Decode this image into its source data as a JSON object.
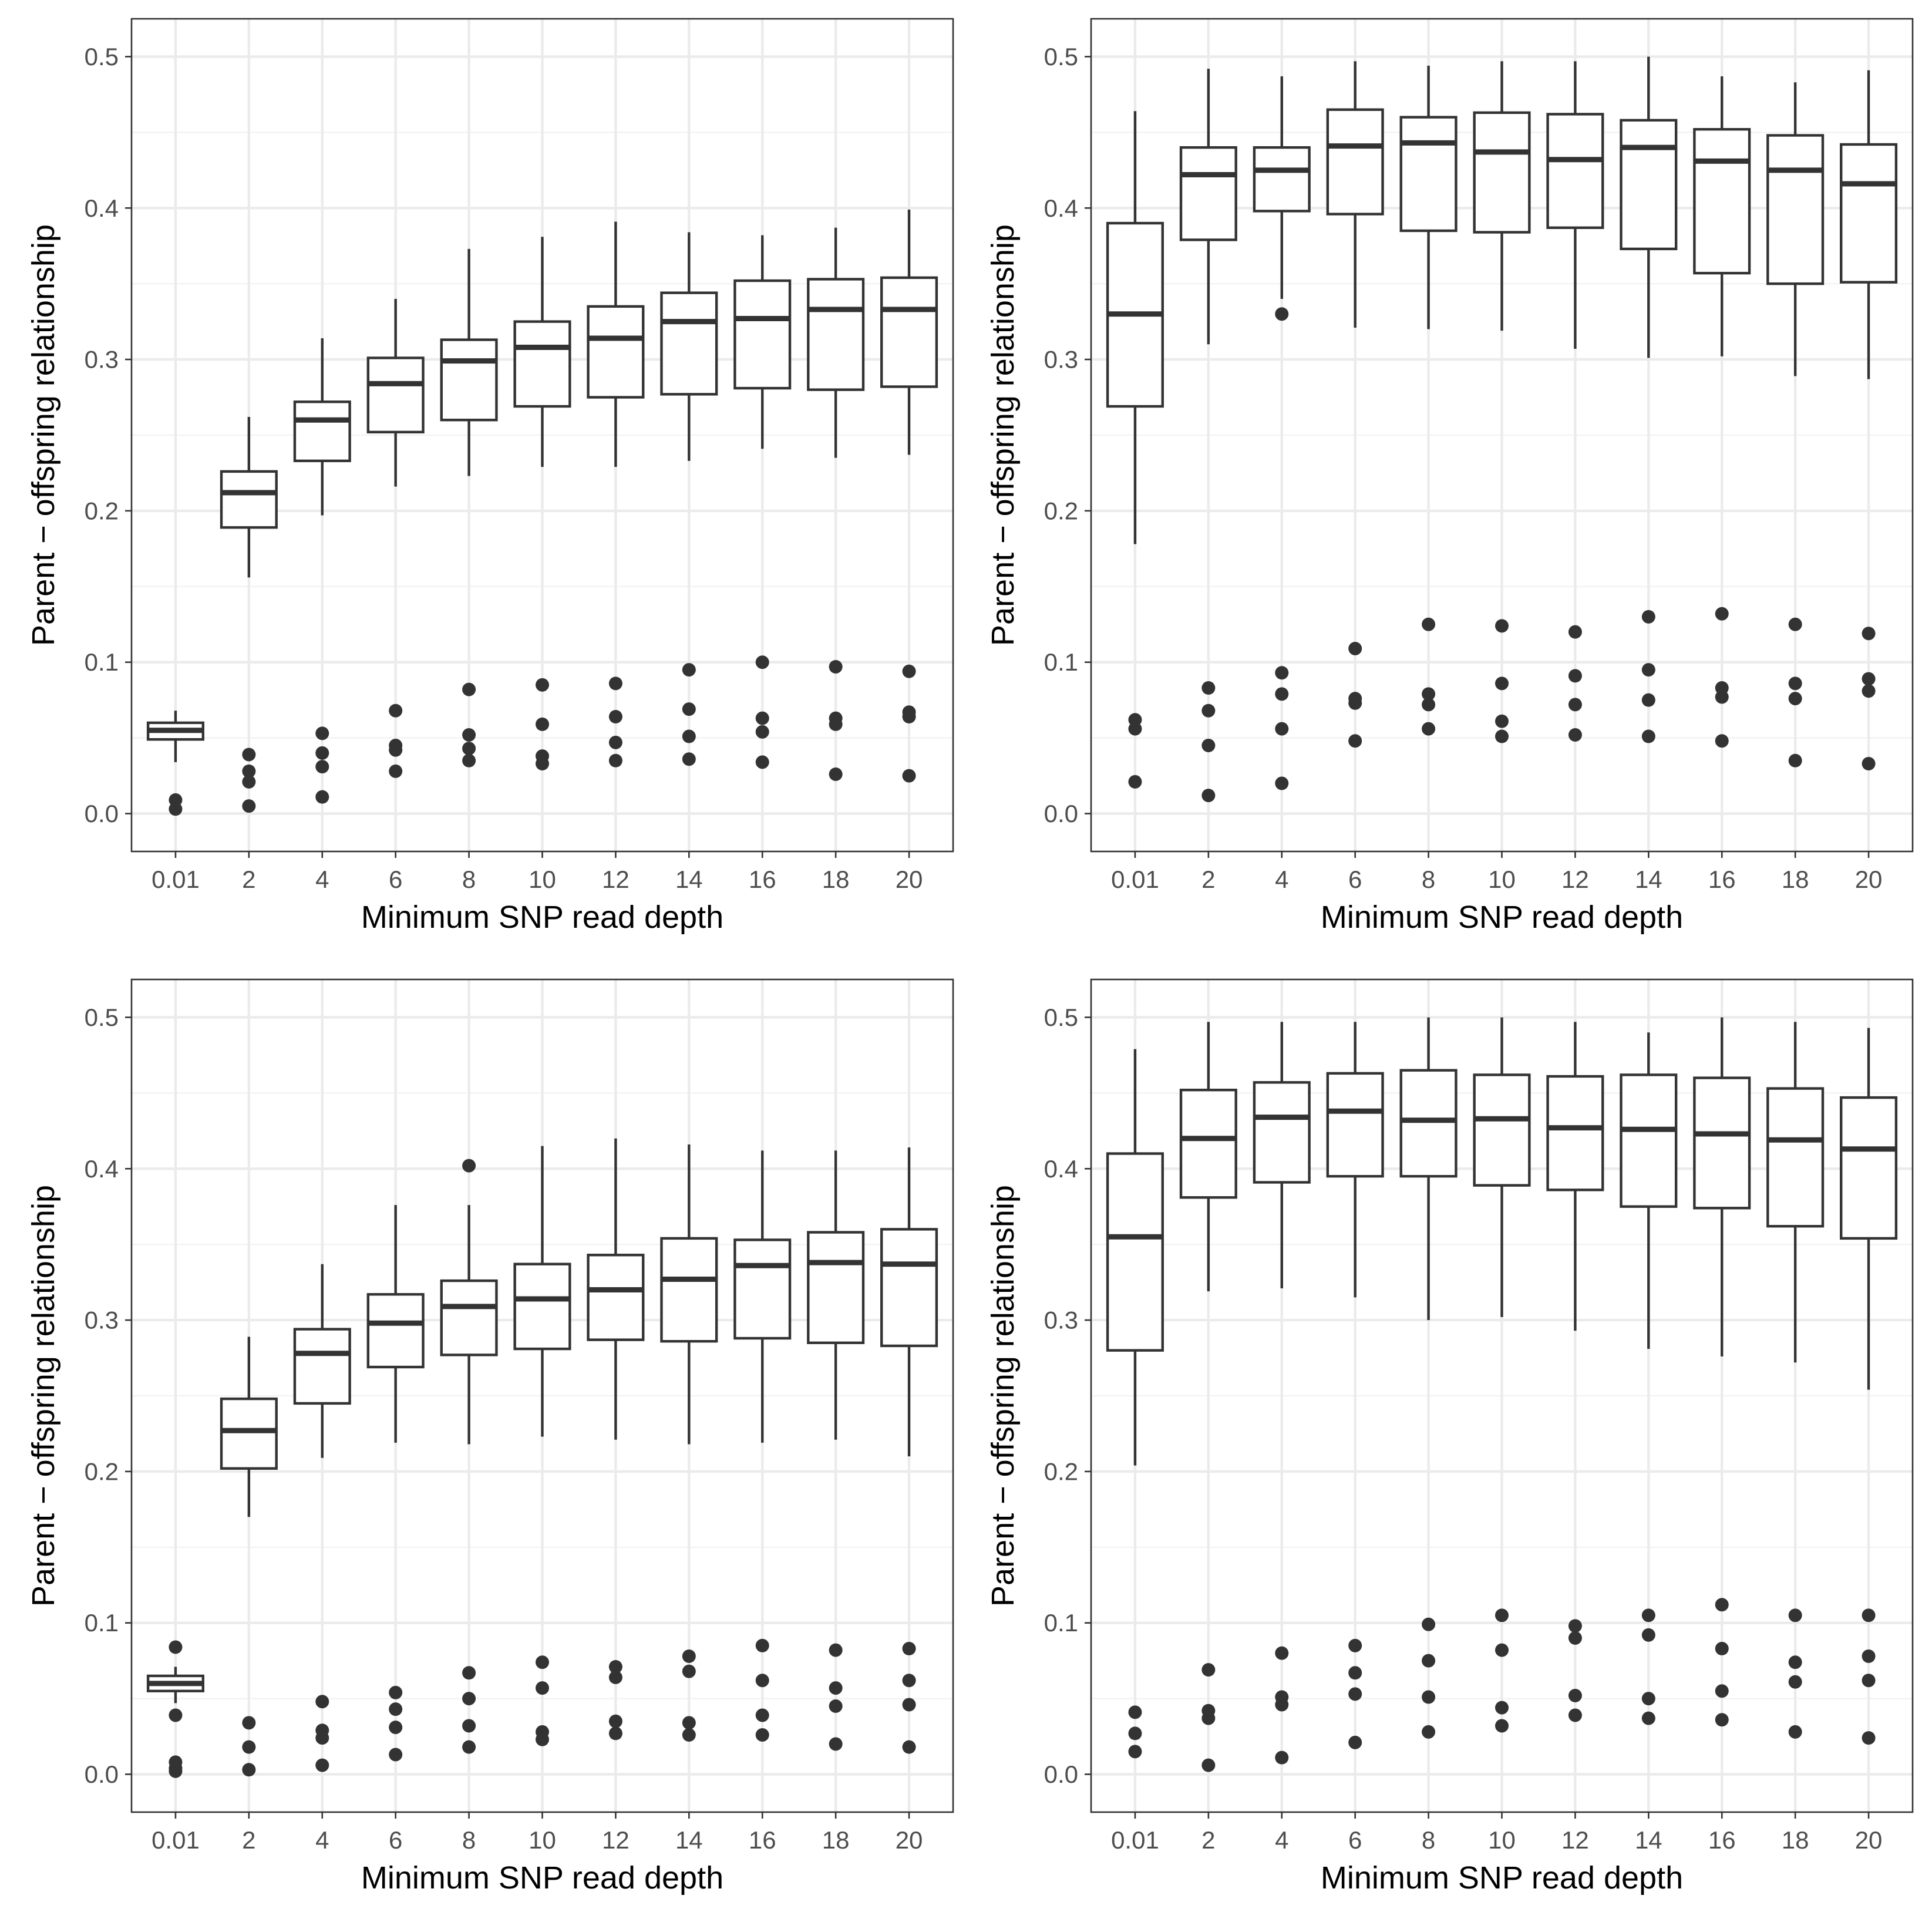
{
  "chart_data": [
    {
      "type": "box",
      "panel": "top-left",
      "xlabel": "Minimum SNP read depth",
      "ylabel": "Parent − offspring relationship",
      "categories": [
        "0.01",
        "2",
        "4",
        "6",
        "8",
        "10",
        "12",
        "14",
        "16",
        "18",
        "20"
      ],
      "ylim": [
        -0.025,
        0.525
      ],
      "yticks": [
        "0.0",
        "0.1",
        "0.2",
        "0.3",
        "0.4",
        "0.5"
      ],
      "grid": true,
      "boxes": [
        {
          "q1": 0.049,
          "median": 0.055,
          "q3": 0.06,
          "whisker_low": 0.034,
          "whisker_high": 0.068,
          "outliers": [
            0.009,
            0.003
          ]
        },
        {
          "q1": 0.189,
          "median": 0.212,
          "q3": 0.226,
          "whisker_low": 0.156,
          "whisker_high": 0.262,
          "outliers": [
            0.039,
            0.028,
            0.021,
            0.005
          ]
        },
        {
          "q1": 0.233,
          "median": 0.26,
          "q3": 0.272,
          "whisker_low": 0.197,
          "whisker_high": 0.314,
          "outliers": [
            0.053,
            0.04,
            0.031,
            0.011
          ]
        },
        {
          "q1": 0.252,
          "median": 0.284,
          "q3": 0.301,
          "whisker_low": 0.216,
          "whisker_high": 0.34,
          "outliers": [
            0.068,
            0.045,
            0.042,
            0.028
          ]
        },
        {
          "q1": 0.26,
          "median": 0.299,
          "q3": 0.313,
          "whisker_low": 0.223,
          "whisker_high": 0.373,
          "outliers": [
            0.082,
            0.052,
            0.043,
            0.035
          ]
        },
        {
          "q1": 0.269,
          "median": 0.308,
          "q3": 0.325,
          "whisker_low": 0.229,
          "whisker_high": 0.381,
          "outliers": [
            0.085,
            0.059,
            0.038,
            0.033
          ]
        },
        {
          "q1": 0.275,
          "median": 0.314,
          "q3": 0.335,
          "whisker_low": 0.229,
          "whisker_high": 0.391,
          "outliers": [
            0.086,
            0.064,
            0.047,
            0.035
          ]
        },
        {
          "q1": 0.277,
          "median": 0.325,
          "q3": 0.344,
          "whisker_low": 0.233,
          "whisker_high": 0.384,
          "outliers": [
            0.095,
            0.069,
            0.051,
            0.036
          ]
        },
        {
          "q1": 0.281,
          "median": 0.327,
          "q3": 0.352,
          "whisker_low": 0.241,
          "whisker_high": 0.382,
          "outliers": [
            0.1,
            0.063,
            0.054,
            0.034
          ]
        },
        {
          "q1": 0.28,
          "median": 0.333,
          "q3": 0.353,
          "whisker_low": 0.235,
          "whisker_high": 0.387,
          "outliers": [
            0.097,
            0.063,
            0.059,
            0.026
          ]
        },
        {
          "q1": 0.282,
          "median": 0.333,
          "q3": 0.354,
          "whisker_low": 0.237,
          "whisker_high": 0.399,
          "outliers": [
            0.094,
            0.067,
            0.064,
            0.025
          ]
        }
      ]
    },
    {
      "type": "box",
      "panel": "top-right",
      "xlabel": "Minimum SNP read depth",
      "ylabel": "Parent − offspring relationship",
      "categories": [
        "0.01",
        "2",
        "4",
        "6",
        "8",
        "10",
        "12",
        "14",
        "16",
        "18",
        "20"
      ],
      "ylim": [
        -0.025,
        0.525
      ],
      "yticks": [
        "0.0",
        "0.1",
        "0.2",
        "0.3",
        "0.4",
        "0.5"
      ],
      "grid": true,
      "boxes": [
        {
          "q1": 0.269,
          "median": 0.33,
          "q3": 0.39,
          "whisker_low": 0.178,
          "whisker_high": 0.464,
          "outliers": [
            0.062,
            0.056,
            0.021
          ]
        },
        {
          "q1": 0.379,
          "median": 0.422,
          "q3": 0.44,
          "whisker_low": 0.31,
          "whisker_high": 0.492,
          "outliers": [
            0.083,
            0.068,
            0.045,
            0.012
          ]
        },
        {
          "q1": 0.398,
          "median": 0.425,
          "q3": 0.44,
          "whisker_low": 0.34,
          "whisker_high": 0.487,
          "outliers": [
            0.33,
            0.093,
            0.079,
            0.056,
            0.02
          ]
        },
        {
          "q1": 0.396,
          "median": 0.441,
          "q3": 0.465,
          "whisker_low": 0.321,
          "whisker_high": 0.497,
          "outliers": [
            0.109,
            0.076,
            0.073,
            0.048
          ]
        },
        {
          "q1": 0.385,
          "median": 0.443,
          "q3": 0.46,
          "whisker_low": 0.32,
          "whisker_high": 0.494,
          "outliers": [
            0.125,
            0.079,
            0.072,
            0.056
          ]
        },
        {
          "q1": 0.384,
          "median": 0.437,
          "q3": 0.463,
          "whisker_low": 0.319,
          "whisker_high": 0.497,
          "outliers": [
            0.124,
            0.086,
            0.061,
            0.051
          ]
        },
        {
          "q1": 0.387,
          "median": 0.432,
          "q3": 0.462,
          "whisker_low": 0.307,
          "whisker_high": 0.497,
          "outliers": [
            0.12,
            0.091,
            0.072,
            0.052
          ]
        },
        {
          "q1": 0.373,
          "median": 0.44,
          "q3": 0.458,
          "whisker_low": 0.301,
          "whisker_high": 0.5,
          "outliers": [
            0.13,
            0.095,
            0.075,
            0.051
          ]
        },
        {
          "q1": 0.357,
          "median": 0.431,
          "q3": 0.452,
          "whisker_low": 0.302,
          "whisker_high": 0.487,
          "outliers": [
            0.132,
            0.083,
            0.077,
            0.048
          ]
        },
        {
          "q1": 0.35,
          "median": 0.425,
          "q3": 0.448,
          "whisker_low": 0.289,
          "whisker_high": 0.483,
          "outliers": [
            0.125,
            0.086,
            0.076,
            0.035
          ]
        },
        {
          "q1": 0.351,
          "median": 0.416,
          "q3": 0.442,
          "whisker_low": 0.287,
          "whisker_high": 0.491,
          "outliers": [
            0.119,
            0.089,
            0.081,
            0.033
          ]
        }
      ]
    },
    {
      "type": "box",
      "panel": "bottom-left",
      "xlabel": "Minimum SNP read depth",
      "ylabel": "Parent − offspring relationship",
      "categories": [
        "0.01",
        "2",
        "4",
        "6",
        "8",
        "10",
        "12",
        "14",
        "16",
        "18",
        "20"
      ],
      "ylim": [
        -0.025,
        0.525
      ],
      "yticks": [
        "0.0",
        "0.1",
        "0.2",
        "0.3",
        "0.4",
        "0.5"
      ],
      "grid": true,
      "boxes": [
        {
          "q1": 0.055,
          "median": 0.06,
          "q3": 0.065,
          "whisker_low": 0.047,
          "whisker_high": 0.071,
          "outliers": [
            0.084,
            0.039,
            0.008,
            0.004,
            0.002
          ]
        },
        {
          "q1": 0.202,
          "median": 0.227,
          "q3": 0.248,
          "whisker_low": 0.17,
          "whisker_high": 0.289,
          "outliers": [
            0.034,
            0.018,
            0.003
          ]
        },
        {
          "q1": 0.245,
          "median": 0.278,
          "q3": 0.294,
          "whisker_low": 0.209,
          "whisker_high": 0.337,
          "outliers": [
            0.048,
            0.029,
            0.024,
            0.006
          ]
        },
        {
          "q1": 0.269,
          "median": 0.298,
          "q3": 0.317,
          "whisker_low": 0.219,
          "whisker_high": 0.376,
          "outliers": [
            0.054,
            0.043,
            0.031,
            0.013
          ]
        },
        {
          "q1": 0.277,
          "median": 0.309,
          "q3": 0.326,
          "whisker_low": 0.218,
          "whisker_high": 0.376,
          "outliers": [
            0.402,
            0.067,
            0.05,
            0.032,
            0.018
          ]
        },
        {
          "q1": 0.281,
          "median": 0.314,
          "q3": 0.337,
          "whisker_low": 0.223,
          "whisker_high": 0.415,
          "outliers": [
            0.074,
            0.057,
            0.028,
            0.023
          ]
        },
        {
          "q1": 0.287,
          "median": 0.32,
          "q3": 0.343,
          "whisker_low": 0.221,
          "whisker_high": 0.42,
          "outliers": [
            0.071,
            0.064,
            0.035,
            0.027
          ]
        },
        {
          "q1": 0.286,
          "median": 0.327,
          "q3": 0.354,
          "whisker_low": 0.218,
          "whisker_high": 0.416,
          "outliers": [
            0.078,
            0.068,
            0.034,
            0.026
          ]
        },
        {
          "q1": 0.288,
          "median": 0.336,
          "q3": 0.353,
          "whisker_low": 0.219,
          "whisker_high": 0.412,
          "outliers": [
            0.085,
            0.062,
            0.039,
            0.026
          ]
        },
        {
          "q1": 0.285,
          "median": 0.338,
          "q3": 0.358,
          "whisker_low": 0.221,
          "whisker_high": 0.412,
          "outliers": [
            0.082,
            0.057,
            0.045,
            0.02
          ]
        },
        {
          "q1": 0.283,
          "median": 0.337,
          "q3": 0.36,
          "whisker_low": 0.21,
          "whisker_high": 0.414,
          "outliers": [
            0.083,
            0.062,
            0.046,
            0.018
          ]
        }
      ]
    },
    {
      "type": "box",
      "panel": "bottom-right",
      "xlabel": "Minimum SNP read depth",
      "ylabel": "Parent − offspring relationship",
      "categories": [
        "0.01",
        "2",
        "4",
        "6",
        "8",
        "10",
        "12",
        "14",
        "16",
        "18",
        "20"
      ],
      "ylim": [
        -0.025,
        0.525
      ],
      "yticks": [
        "0.0",
        "0.1",
        "0.2",
        "0.3",
        "0.4",
        "0.5"
      ],
      "grid": true,
      "boxes": [
        {
          "q1": 0.28,
          "median": 0.355,
          "q3": 0.41,
          "whisker_low": 0.204,
          "whisker_high": 0.479,
          "outliers": [
            0.041,
            0.027,
            0.015
          ]
        },
        {
          "q1": 0.381,
          "median": 0.42,
          "q3": 0.452,
          "whisker_low": 0.319,
          "whisker_high": 0.497,
          "outliers": [
            0.069,
            0.042,
            0.037,
            0.006
          ]
        },
        {
          "q1": 0.391,
          "median": 0.434,
          "q3": 0.457,
          "whisker_low": 0.321,
          "whisker_high": 0.497,
          "outliers": [
            0.08,
            0.051,
            0.046,
            0.011
          ]
        },
        {
          "q1": 0.395,
          "median": 0.438,
          "q3": 0.463,
          "whisker_low": 0.315,
          "whisker_high": 0.497,
          "outliers": [
            0.085,
            0.067,
            0.053,
            0.021
          ]
        },
        {
          "q1": 0.395,
          "median": 0.432,
          "q3": 0.465,
          "whisker_low": 0.3,
          "whisker_high": 0.5,
          "outliers": [
            0.099,
            0.075,
            0.051,
            0.028
          ]
        },
        {
          "q1": 0.389,
          "median": 0.433,
          "q3": 0.462,
          "whisker_low": 0.302,
          "whisker_high": 0.5,
          "outliers": [
            0.105,
            0.082,
            0.044,
            0.032
          ]
        },
        {
          "q1": 0.386,
          "median": 0.427,
          "q3": 0.461,
          "whisker_low": 0.293,
          "whisker_high": 0.497,
          "outliers": [
            0.098,
            0.09,
            0.052,
            0.039
          ]
        },
        {
          "q1": 0.375,
          "median": 0.426,
          "q3": 0.462,
          "whisker_low": 0.281,
          "whisker_high": 0.49,
          "outliers": [
            0.105,
            0.092,
            0.05,
            0.037
          ]
        },
        {
          "q1": 0.374,
          "median": 0.423,
          "q3": 0.46,
          "whisker_low": 0.276,
          "whisker_high": 0.5,
          "outliers": [
            0.112,
            0.083,
            0.055,
            0.036
          ]
        },
        {
          "q1": 0.362,
          "median": 0.419,
          "q3": 0.453,
          "whisker_low": 0.272,
          "whisker_high": 0.497,
          "outliers": [
            0.105,
            0.074,
            0.061,
            0.028
          ]
        },
        {
          "q1": 0.354,
          "median": 0.413,
          "q3": 0.447,
          "whisker_low": 0.254,
          "whisker_high": 0.493,
          "outliers": [
            0.105,
            0.078,
            0.062,
            0.024
          ]
        }
      ]
    }
  ]
}
